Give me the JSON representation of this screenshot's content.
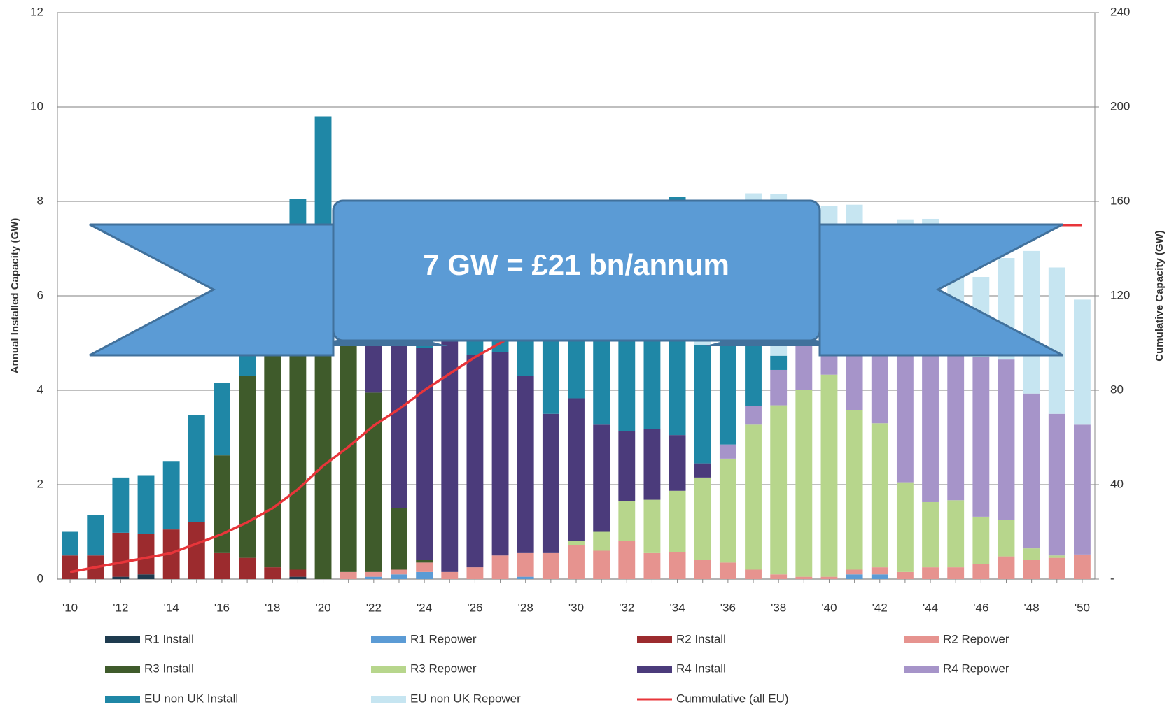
{
  "chart_data": {
    "type": "bar",
    "annotation": "7 GW = £21 bn/annum",
    "y_label": "Annual Installed Capacity (GW)",
    "y2_label": "Cumulative Capacity (GW)",
    "categories": [
      "'10",
      null,
      "'12",
      null,
      "'14",
      null,
      "'16",
      null,
      "'18",
      null,
      "'20",
      null,
      "'22",
      null,
      "'24",
      null,
      "'26",
      null,
      "'28",
      null,
      "'30",
      null,
      "'32",
      null,
      "'34",
      null,
      "'36",
      null,
      "'38",
      null,
      "'40",
      null,
      "'42",
      null,
      "'44",
      null,
      "'46",
      null,
      "'48",
      null,
      "'50"
    ],
    "ylim": [
      0,
      12
    ],
    "yticks": [
      0,
      2,
      4,
      6,
      8,
      10,
      12
    ],
    "y2lim": [
      0,
      240
    ],
    "y2ticks": [
      {
        "value": 0,
        "label": "-"
      },
      40,
      80,
      120,
      160,
      200,
      240
    ],
    "grid": true,
    "stacked": true,
    "series": [
      {
        "name": "R1 Install",
        "color": "#1e3b4f",
        "values": [
          0,
          0,
          0.05,
          0.1,
          0,
          0,
          0,
          0,
          0,
          0.05,
          0,
          0,
          0,
          0,
          0,
          0,
          0,
          0,
          0,
          0,
          0,
          0,
          0,
          0,
          0,
          0,
          0,
          0,
          0,
          0,
          0,
          0,
          0,
          0,
          0,
          0,
          0,
          0,
          0,
          0,
          0
        ]
      },
      {
        "name": "R1 Repower",
        "color": "#5b9bd5",
        "values": [
          0,
          0,
          0,
          0,
          0,
          0,
          0,
          0,
          0,
          0,
          0,
          0,
          0.05,
          0.1,
          0.15,
          0,
          0,
          0,
          0.05,
          0,
          0,
          0,
          0,
          0,
          0,
          0,
          0,
          0,
          0,
          0,
          0,
          0.1,
          0.1,
          0,
          0,
          0,
          0,
          0,
          0,
          0,
          0
        ]
      },
      {
        "name": "R2 Install",
        "color": "#9c2b2e",
        "values": [
          0.5,
          0.5,
          0.93,
          0.85,
          1.05,
          1.2,
          0.55,
          0.45,
          0.25,
          0.15,
          0,
          0,
          0,
          0,
          0,
          0,
          0,
          0,
          0,
          0,
          0,
          0,
          0,
          0,
          0,
          0,
          0,
          0,
          0,
          0,
          0,
          0,
          0,
          0,
          0,
          0,
          0,
          0,
          0,
          0,
          0
        ]
      },
      {
        "name": "R2 Repower",
        "color": "#e6938f",
        "values": [
          0,
          0,
          0,
          0,
          0,
          0,
          0,
          0,
          0,
          0,
          0,
          0.15,
          0.1,
          0.1,
          0.2,
          0.15,
          0.25,
          0.5,
          0.5,
          0.55,
          0.72,
          0.6,
          0.8,
          0.55,
          0.57,
          0.4,
          0.35,
          0.2,
          0.1,
          0.05,
          0.05,
          0.1,
          0.15,
          0.15,
          0.25,
          0.25,
          0.32,
          0.48,
          0.4,
          0.45,
          0.52
        ]
      },
      {
        "name": "R3 Install",
        "color": "#3f5b2b",
        "values": [
          0,
          0,
          0,
          0,
          0,
          0,
          2.07,
          3.85,
          5.0,
          5.5,
          6.0,
          5.5,
          3.8,
          1.3,
          0.05,
          0,
          0,
          0,
          0,
          0,
          0,
          0,
          0,
          0,
          0,
          0,
          0,
          0,
          0,
          0,
          0,
          0,
          0,
          0,
          0,
          0,
          0,
          0,
          0,
          0,
          0
        ]
      },
      {
        "name": "R3 Repower",
        "color": "#b7d68c",
        "values": [
          0,
          0,
          0,
          0,
          0,
          0,
          0,
          0,
          0,
          0,
          0,
          0,
          0,
          0,
          0,
          0,
          0,
          0,
          0,
          0,
          0.08,
          0.4,
          0.85,
          1.13,
          1.3,
          1.75,
          2.2,
          3.07,
          3.58,
          3.95,
          4.28,
          3.38,
          3.05,
          1.9,
          1.38,
          1.42,
          1.0,
          0.77,
          0.25,
          0.05,
          0
        ]
      },
      {
        "name": "R4 Install",
        "color": "#4b3b7b",
        "values": [
          0,
          0,
          0,
          0,
          0,
          0,
          0,
          0,
          0,
          0,
          0,
          0,
          1.2,
          3.5,
          4.5,
          5.0,
          4.5,
          4.3,
          3.75,
          2.95,
          3.03,
          2.27,
          1.48,
          1.5,
          1.18,
          0.3,
          0,
          0,
          0,
          0,
          0,
          0,
          0,
          0,
          0,
          0,
          0,
          0,
          0,
          0,
          0
        ]
      },
      {
        "name": "R4 Repower",
        "color": "#a694c9",
        "values": [
          0,
          0,
          0,
          0,
          0,
          0,
          0,
          0,
          0,
          0,
          0,
          0,
          0,
          0,
          0,
          0,
          0,
          0,
          0,
          0,
          0,
          0,
          0,
          0,
          0,
          0,
          0.3,
          0.4,
          0.75,
          1.5,
          1.5,
          2.0,
          2.2,
          3.2,
          3.5,
          3.2,
          3.38,
          3.4,
          3.28,
          3.0,
          2.75
        ]
      },
      {
        "name": "EU non UK Install",
        "color": "#1f87a6",
        "values": [
          0.5,
          0.85,
          1.17,
          1.25,
          1.45,
          2.27,
          1.53,
          1.2,
          1.75,
          2.35,
          3.8,
          1.85,
          1.8,
          2.0,
          2.1,
          1.9,
          2.2,
          2.2,
          2.7,
          3.5,
          3.2,
          3.7,
          3.9,
          3.8,
          5.05,
          2.5,
          3.0,
          1.5,
          0.3,
          0,
          0,
          0,
          0,
          0,
          0,
          0,
          0,
          0,
          0,
          0,
          0
        ]
      },
      {
        "name": "EU non UK Repower",
        "color": "#c6e5f1",
        "values": [
          0,
          0,
          0,
          0,
          0,
          0,
          0,
          0,
          0,
          0,
          0,
          0,
          0,
          0,
          0,
          0,
          0,
          0,
          0,
          0,
          0,
          0,
          0,
          0,
          0,
          2.55,
          1.0,
          3.0,
          3.42,
          2.5,
          2.07,
          2.35,
          1.9,
          2.37,
          2.5,
          2.3,
          1.7,
          2.15,
          3.02,
          3.1,
          2.65
        ]
      },
      {
        "name": "Cummulative (all EU)",
        "color": "#e8353a",
        "type": "line",
        "axis": "y2",
        "values": [
          3,
          5,
          7,
          9,
          11,
          15,
          19,
          24,
          30,
          38,
          48,
          56,
          65,
          72,
          80,
          87,
          94,
          100,
          106,
          112,
          117,
          122,
          127,
          131,
          135,
          138,
          141,
          143,
          145,
          147,
          148,
          149,
          150,
          150,
          150,
          150,
          150,
          150,
          150,
          150,
          150
        ]
      }
    ]
  }
}
